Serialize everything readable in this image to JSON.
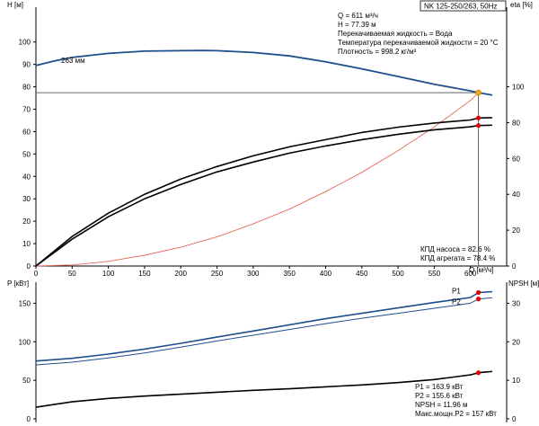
{
  "title": "NK 125-250/263, 50Hz",
  "info_lines": [
    "Q = 611 м³/ч",
    "H = 77.39 м",
    "Перекачиваемая жидкость = Вода",
    "Температура перекачиваемой жидкости = 20 °C",
    "Плотность = 998.2 кг/м³"
  ],
  "eff_lines": [
    "КПД насоса = 82.6 %",
    "КПД агрегата = 78.4 %"
  ],
  "power_lines": [
    "P1 = 163.9 кВт",
    "P2 = 155.6 кВт",
    "NPSH = 11.96 м",
    "Макс.мощн.P2 = 157 кВт"
  ],
  "curve_label": "263 мм",
  "colors": {
    "head": "#1f4e8c",
    "power": "#1f4e8c",
    "eff": "#000000",
    "npsh": "#000000",
    "system": "#e86a5a",
    "op_point": "#f5a623",
    "marker": "#e00000"
  },
  "chart_data": [
    {
      "type": "line",
      "xlabel": "Q [м³/ч]",
      "ylabel": "H [м]",
      "y2label": "eta [%]",
      "xlim": [
        0,
        650
      ],
      "ylim": [
        0,
        110
      ],
      "y2lim": [
        0,
        137.5
      ],
      "xticks": [
        0,
        50,
        100,
        150,
        200,
        250,
        300,
        350,
        400,
        450,
        500,
        550,
        600
      ],
      "yticks": [
        0,
        10,
        20,
        30,
        40,
        50,
        60,
        70,
        80,
        90,
        100
      ],
      "y2ticks": [
        0,
        20,
        40,
        60,
        80,
        100
      ],
      "grid": false,
      "operating_point": {
        "x": 611,
        "y": 77.39
      },
      "series": [
        {
          "key": "head",
          "axis": "y",
          "x": [
            0,
            25,
            50,
            100,
            150,
            200,
            230,
            250,
            300,
            350,
            400,
            450,
            500,
            550,
            600,
            611,
            630
          ],
          "y": [
            89.5,
            91.5,
            93.1,
            94.9,
            95.9,
            96.1,
            96.2,
            96.1,
            95.3,
            93.8,
            91.2,
            88.0,
            84.6,
            81.1,
            78.2,
            77.39,
            76.3
          ]
        },
        {
          "key": "system",
          "axis": "y",
          "x": [
            0,
            50,
            100,
            150,
            200,
            250,
            300,
            350,
            400,
            450,
            500,
            550,
            600,
            611
          ],
          "y": [
            0,
            0.5,
            2.1,
            4.8,
            8.4,
            13.0,
            18.8,
            25.4,
            33.2,
            41.8,
            51.5,
            62.1,
            73.9,
            77.39
          ]
        },
        {
          "key": "eff_pump",
          "axis": "y2",
          "x": [
            0,
            50,
            100,
            150,
            200,
            250,
            300,
            350,
            400,
            450,
            500,
            550,
            600,
            611,
            630
          ],
          "y": [
            0,
            16.5,
            29.5,
            40.0,
            48.5,
            55.5,
            61.5,
            66.5,
            70.5,
            74.5,
            77.5,
            79.8,
            81.5,
            82.6,
            82.8
          ]
        },
        {
          "key": "eff_unit",
          "axis": "y2",
          "x": [
            0,
            50,
            100,
            150,
            200,
            250,
            300,
            350,
            400,
            450,
            500,
            550,
            600,
            611,
            630
          ],
          "y": [
            0,
            15.0,
            27.5,
            37.5,
            45.5,
            52.5,
            58.0,
            63.0,
            67.0,
            70.5,
            73.5,
            76.0,
            77.7,
            78.4,
            78.6
          ]
        }
      ]
    },
    {
      "type": "line",
      "xlabel": "",
      "ylabel": "P [кВт]",
      "y2label": "NPSH [м]",
      "xlim": [
        0,
        650
      ],
      "ylim": [
        0,
        175
      ],
      "y2lim": [
        0,
        35
      ],
      "yticks": [
        0,
        50,
        100,
        150
      ],
      "y2ticks": [
        0,
        10,
        20,
        30
      ],
      "grid": false,
      "series": [
        {
          "key": "P1",
          "name": "P1",
          "axis": "y",
          "x": [
            0,
            50,
            100,
            150,
            200,
            250,
            300,
            350,
            400,
            450,
            500,
            550,
            600,
            611,
            630
          ],
          "y": [
            75,
            78.5,
            84,
            90.5,
            98,
            106,
            114,
            122,
            130,
            137,
            144,
            151,
            157.5,
            163.9,
            165
          ]
        },
        {
          "key": "P2",
          "name": "P2",
          "axis": "y",
          "x": [
            0,
            50,
            100,
            150,
            200,
            250,
            300,
            350,
            400,
            450,
            500,
            550,
            600,
            611,
            630
          ],
          "y": [
            70,
            73.5,
            79,
            85.5,
            93,
            101,
            108.5,
            116,
            123.5,
            130.5,
            137,
            143.5,
            150,
            155.6,
            157
          ]
        },
        {
          "key": "npsh",
          "axis": "y2",
          "x": [
            0,
            50,
            100,
            150,
            200,
            250,
            300,
            350,
            400,
            450,
            500,
            550,
            600,
            611,
            630
          ],
          "y": [
            3.0,
            4.4,
            5.3,
            5.9,
            6.4,
            6.9,
            7.4,
            7.8,
            8.3,
            8.8,
            9.4,
            10.2,
            11.4,
            11.96,
            12.3
          ]
        }
      ]
    }
  ]
}
